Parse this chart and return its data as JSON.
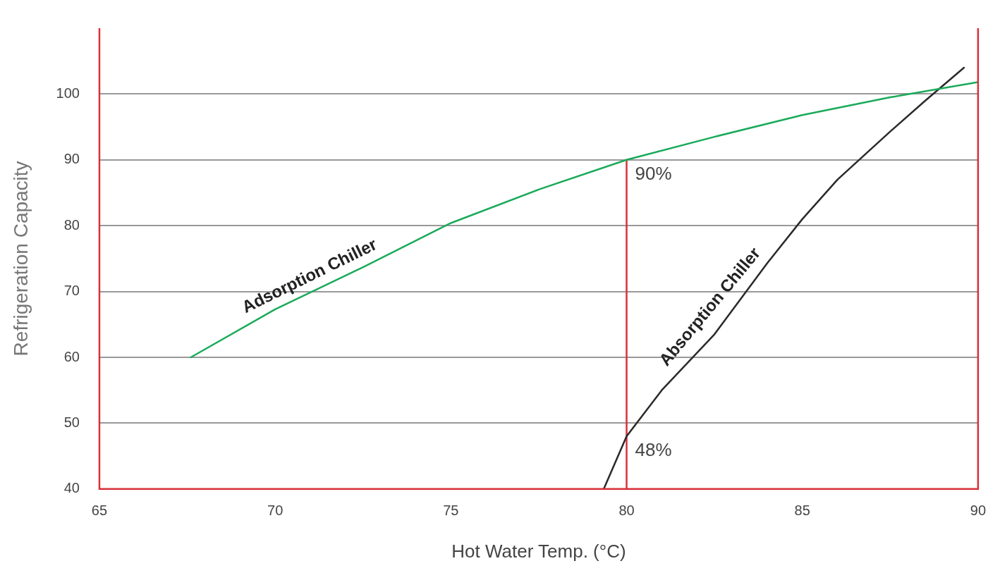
{
  "chart_data": {
    "type": "line",
    "xlabel": "Hot Water Temp. (°C)",
    "ylabel": "Refrigeration Capacity",
    "xlim": [
      65,
      90
    ],
    "xticks": [
      65,
      70,
      75,
      80,
      85,
      90
    ],
    "ylim": [
      40,
      110
    ],
    "yticks": [
      40,
      50,
      60,
      70,
      80,
      90,
      100
    ],
    "grid": "y",
    "marker": "none",
    "line_style": "solid",
    "legend": false,
    "series": [
      {
        "name": "Adsorption Chiller",
        "color": "#1aaa5a",
        "x": [
          67.6,
          70,
          72.5,
          75,
          77.5,
          80,
          82.5,
          85,
          87.5,
          90
        ],
        "values": [
          60,
          67.3,
          73.7,
          80.4,
          85.5,
          90,
          93.5,
          96.8,
          99.5,
          101.8
        ]
      },
      {
        "name": "Absorption Chiller",
        "color": "#2a2a2a",
        "x": [
          79.35,
          80,
          81,
          82.5,
          84,
          85,
          86,
          87.5,
          88.5,
          89.6
        ],
        "values": [
          40,
          48,
          55,
          63.5,
          74.3,
          81,
          87,
          94.3,
          99,
          104
        ]
      },
      {
        "color": "#d8303a",
        "x": [
          80,
          80
        ],
        "values": [
          40,
          90
        ]
      }
    ],
    "annotations": [
      {
        "text": "90%",
        "x": 80,
        "y": 90
      },
      {
        "text": "48%",
        "x": 80,
        "y": 48
      }
    ]
  }
}
